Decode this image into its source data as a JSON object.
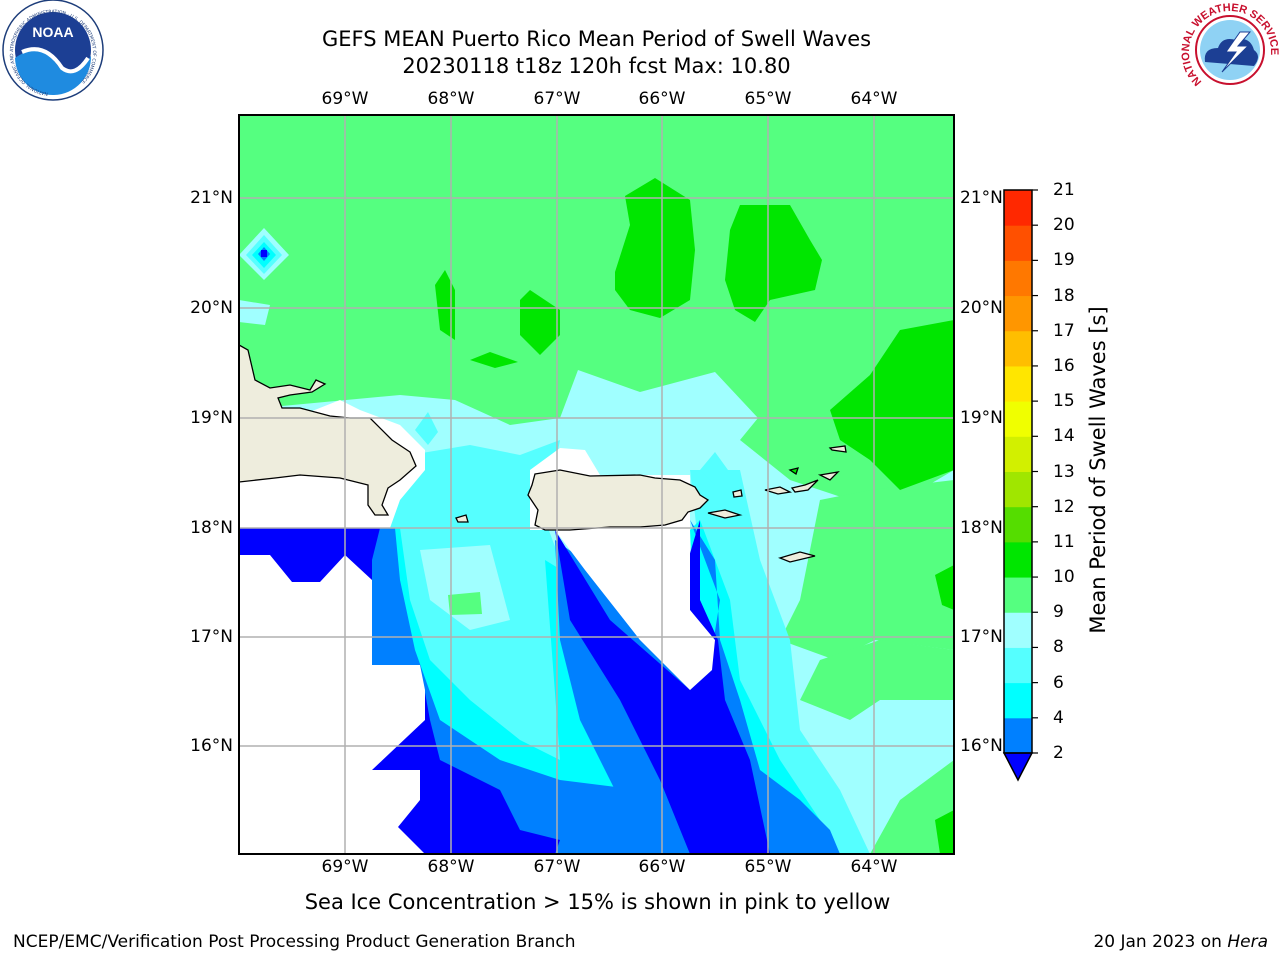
{
  "header": {
    "title_line1": "GEFS MEAN Puerto Rico Mean Period of Swell Waves",
    "title_line2": "20230118 t18z 120h fcst   Max: 10.80"
  },
  "logos": {
    "noaa_text": "NOAA",
    "noaa_ring_text": "NATIONAL OCEANIC AND ATMOSPHERIC ADMINISTRATION · U.S. DEPARTMENT OF COMMERCE",
    "nws_ring_text": "NATIONAL WEATHER SERVICE"
  },
  "map": {
    "longitude_ticks": [
      "69°W",
      "68°W",
      "67°W",
      "66°W",
      "65°W",
      "64°W"
    ],
    "latitude_ticks": [
      "21°N",
      "20°N",
      "19°N",
      "18°N",
      "17°N",
      "16°N"
    ],
    "lon_range": [
      -70.0,
      -63.25
    ],
    "lat_range": [
      15.0,
      21.75
    ],
    "grid": true,
    "colors": {
      "land": "#eeeddd",
      "grid": "#b0b0b0"
    },
    "max_value": 10.8
  },
  "colorbar": {
    "label": "Mean Period of Swell Waves [s]",
    "ticks": [
      "21",
      "20",
      "19",
      "18",
      "17",
      "16",
      "15",
      "14",
      "13",
      "12",
      "11",
      "10",
      "9",
      "8",
      "6",
      "4",
      "2"
    ],
    "levels": [
      2,
      4,
      6,
      8,
      9,
      10,
      11,
      12,
      13,
      14,
      15,
      16,
      17,
      18,
      19,
      20,
      21
    ],
    "colors": [
      "#0000ff",
      "#0080ff",
      "#00ffff",
      "#55ffff",
      "#a0ffff",
      "#55ff80",
      "#00e600",
      "#55dd00",
      "#a0e600",
      "#d2f000",
      "#f0ff00",
      "#ffe600",
      "#ffbe00",
      "#ff9600",
      "#ff7800",
      "#ff5000",
      "#ff2800",
      "#ff0000"
    ],
    "under_color": "#0000ff"
  },
  "caption": "Sea Ice Concentration > 15% is shown in pink to yellow",
  "footer": {
    "left": "NCEP/EMC/Verification Post Processing Product Generation Branch",
    "date": "20 Jan 2023 on ",
    "machine": "Hera"
  }
}
